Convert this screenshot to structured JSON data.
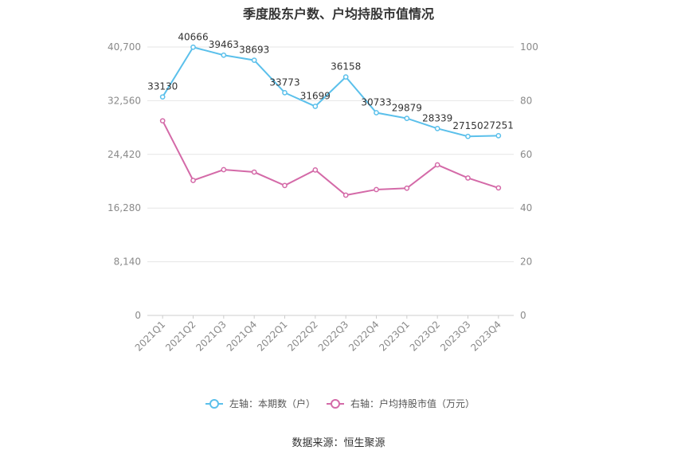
{
  "title": "季度股东户数、户均持股市值情况",
  "source": "数据来源：恒生聚源",
  "chart_data": {
    "type": "line",
    "title": "季度股东户数、户均持股市值情况",
    "categories": [
      "2021Q1",
      "2021Q2",
      "2021Q3",
      "2021Q4",
      "2022Q1",
      "2022Q2",
      "2022Q3",
      "2022Q4",
      "2023Q1",
      "2023Q2",
      "2023Q3",
      "2023Q4"
    ],
    "left_axis": {
      "ylim": [
        0,
        40700
      ],
      "ticks": [
        "0",
        "8,140",
        "16,280",
        "24,420",
        "32,560",
        "40,700"
      ]
    },
    "right_axis": {
      "ylim": [
        0,
        100
      ],
      "ticks": [
        "0",
        "20",
        "40",
        "60",
        "80",
        "100"
      ]
    },
    "grid": true,
    "legend_position": "bottom",
    "series": [
      {
        "name": "左轴：本期数（户）",
        "axis": "left",
        "color": "#5bc0eb",
        "values": [
          33130,
          40666,
          39463,
          38693,
          33773,
          31699,
          36158,
          30733,
          29879,
          28339,
          27150,
          27251
        ],
        "labels": [
          "33130",
          "40666",
          "39463",
          "38693",
          "33773",
          "31699",
          "36158",
          "30733",
          "29879",
          "28339",
          "27150",
          "27251"
        ]
      },
      {
        "name": "右轴：户均持股市值（万元）",
        "axis": "right",
        "color": "#d46aa8",
        "values": [
          72.5,
          50.3,
          54.3,
          53.4,
          48.4,
          54.2,
          44.8,
          46.9,
          47.4,
          56.1,
          51.2,
          47.5
        ]
      }
    ]
  }
}
